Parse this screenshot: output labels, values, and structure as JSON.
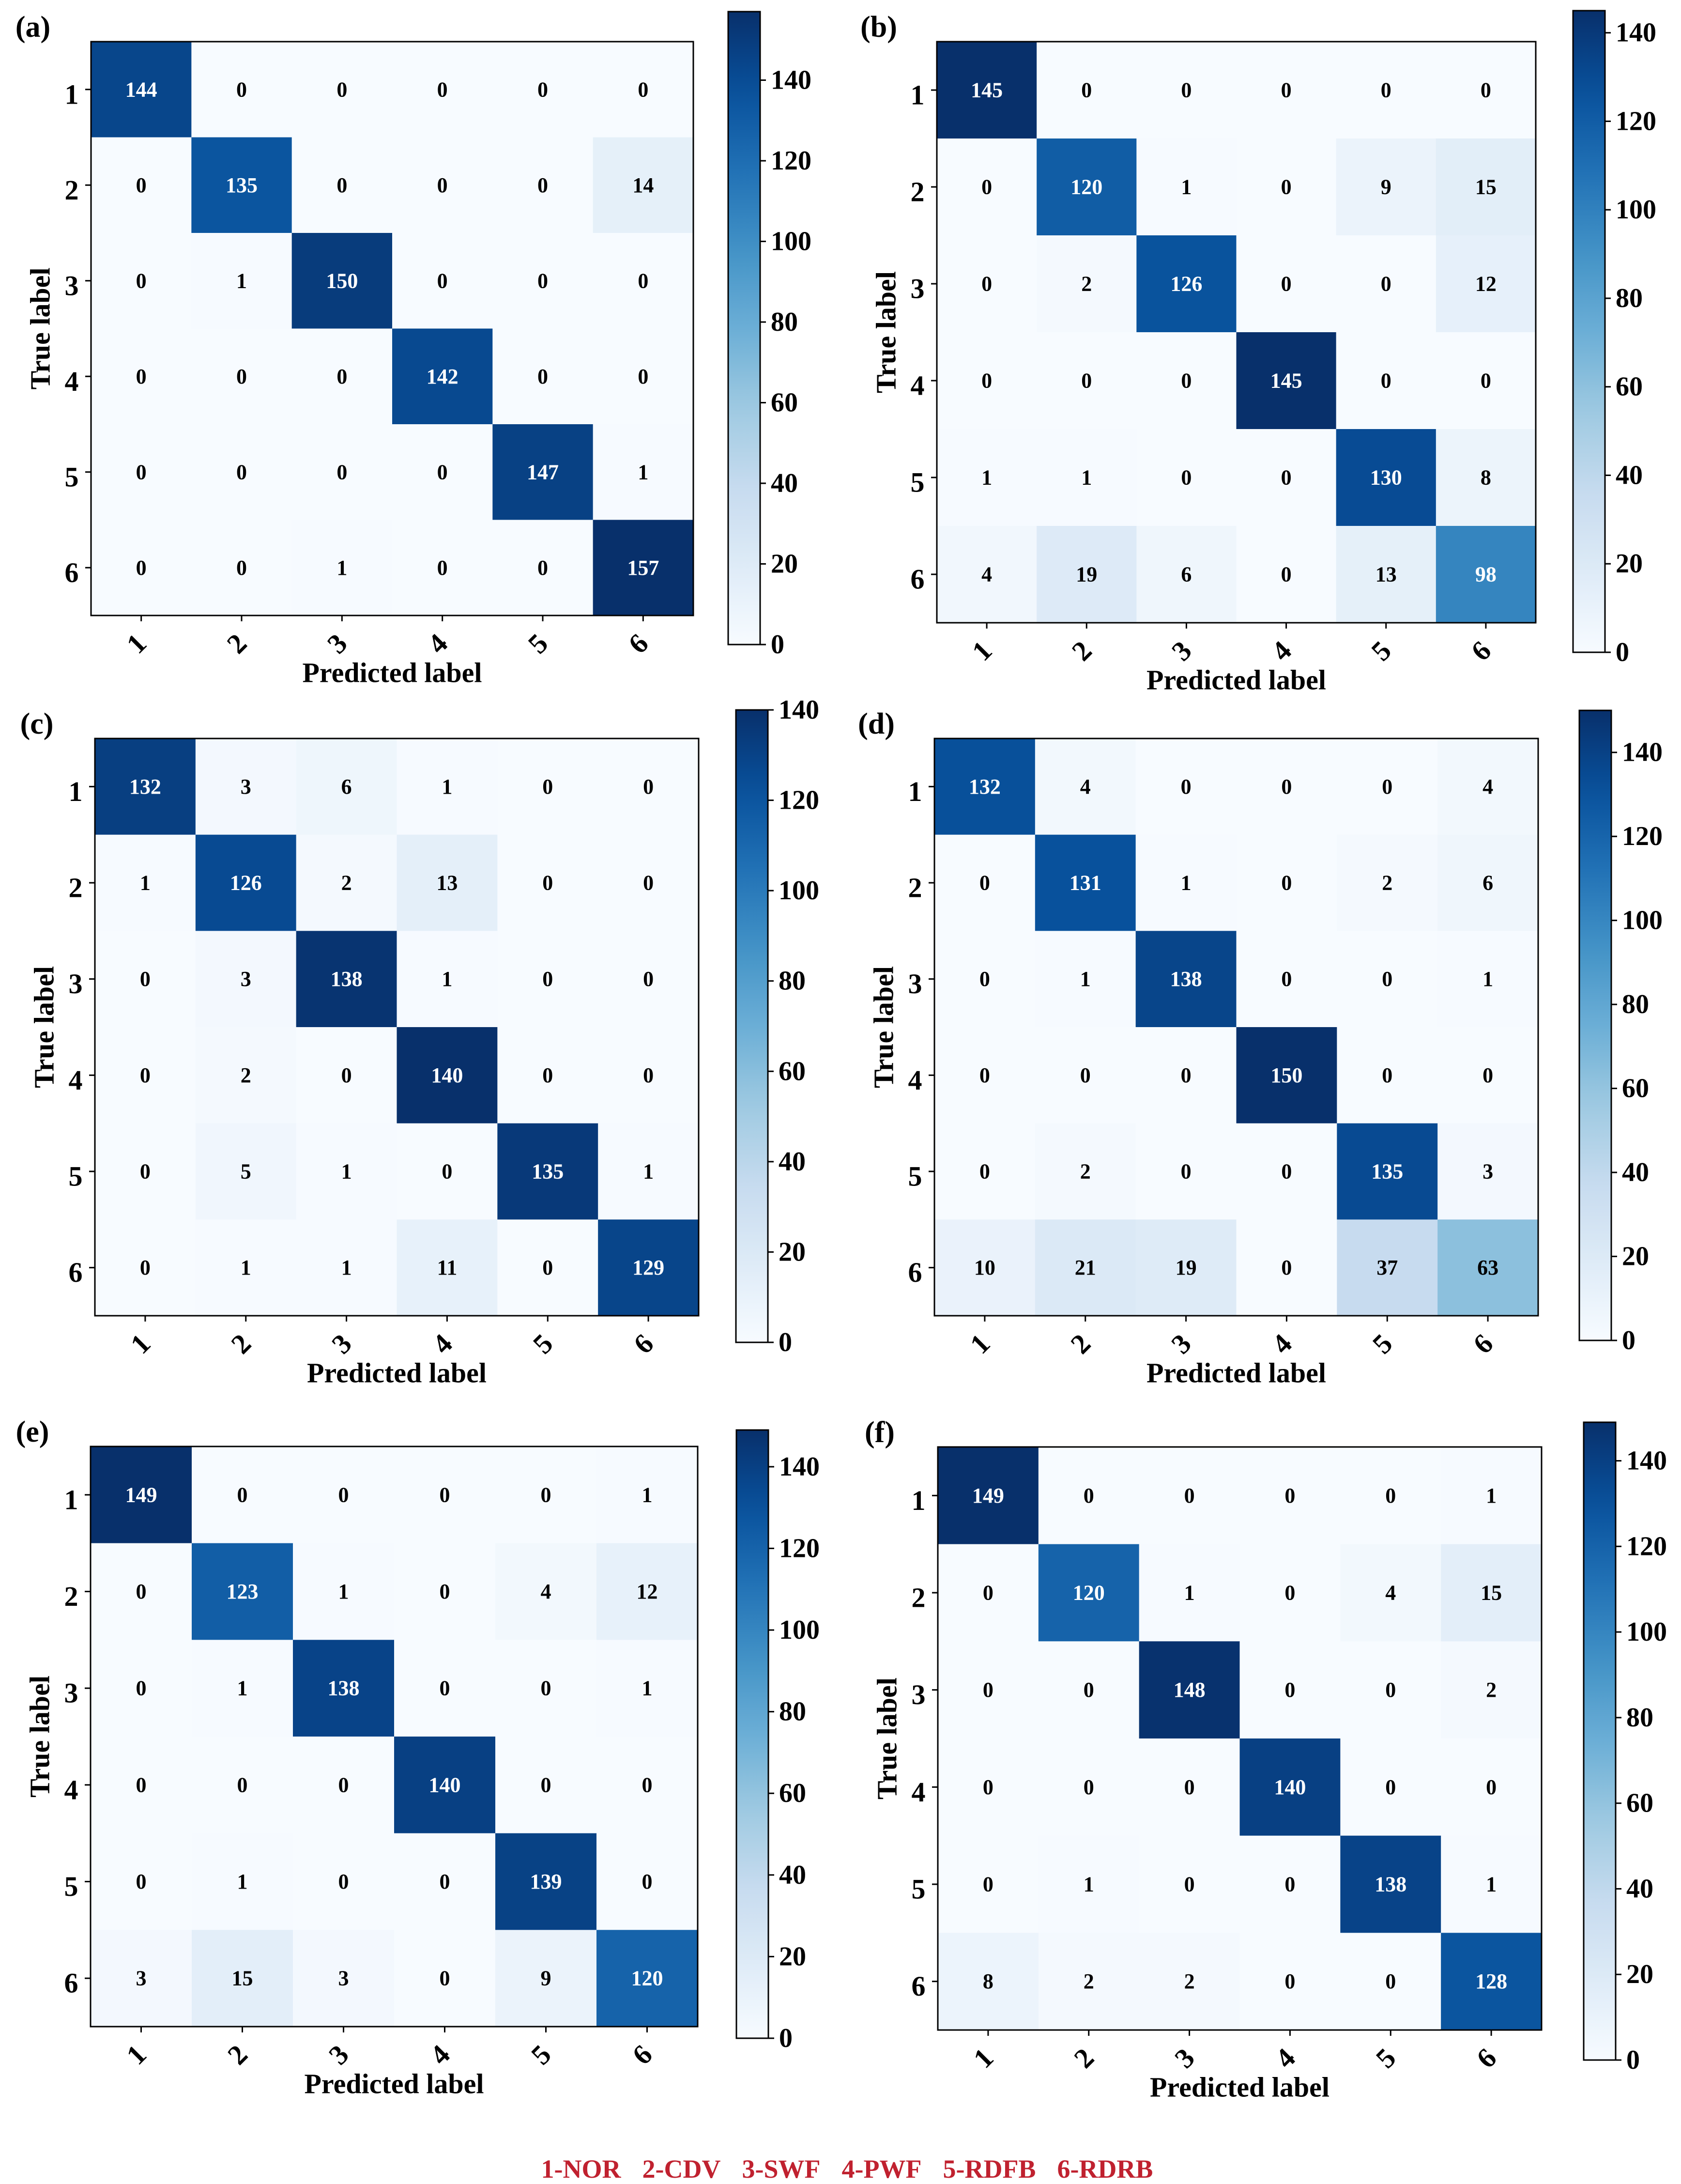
{
  "legend_items": [
    "1-NOR",
    "2-CDV",
    "3-SWF",
    "4-PWF",
    "5-RDFB",
    "6-RDRB"
  ],
  "colors": {
    "cmap_low": "#f7fbff",
    "cmap_high": "#08306b",
    "text_dark": "#000000",
    "text_light": "#ffffff",
    "legend": "#c0212f"
  },
  "chart_data": [
    {
      "type": "heatmap",
      "panel_label": "(a)",
      "xlabel": "Predicted label",
      "ylabel": "True label",
      "categories": [
        "1",
        "2",
        "3",
        "4",
        "5",
        "6"
      ],
      "colorbar_ticks": [
        "0",
        "20",
        "40",
        "60",
        "80",
        "100",
        "120",
        "140"
      ],
      "colorbar_range": [
        0,
        157
      ],
      "values": [
        [
          144,
          0,
          0,
          0,
          0,
          0
        ],
        [
          0,
          135,
          0,
          0,
          0,
          14
        ],
        [
          0,
          1,
          150,
          0,
          0,
          0
        ],
        [
          0,
          0,
          0,
          142,
          0,
          0
        ],
        [
          0,
          0,
          0,
          0,
          147,
          1
        ],
        [
          0,
          0,
          1,
          0,
          0,
          157
        ]
      ]
    },
    {
      "type": "heatmap",
      "panel_label": "(b)",
      "xlabel": "Predicted label",
      "ylabel": "True label",
      "categories": [
        "1",
        "2",
        "3",
        "4",
        "5",
        "6"
      ],
      "colorbar_ticks": [
        "0",
        "20",
        "40",
        "60",
        "80",
        "100",
        "120",
        "140"
      ],
      "colorbar_range": [
        0,
        145
      ],
      "values": [
        [
          145,
          0,
          0,
          0,
          0,
          0
        ],
        [
          0,
          120,
          1,
          0,
          9,
          15
        ],
        [
          0,
          2,
          126,
          0,
          0,
          12
        ],
        [
          0,
          0,
          0,
          145,
          0,
          0
        ],
        [
          1,
          1,
          0,
          0,
          130,
          8
        ],
        [
          4,
          19,
          6,
          0,
          13,
          98
        ]
      ]
    },
    {
      "type": "heatmap",
      "panel_label": "(c)",
      "xlabel": "Predicted label",
      "ylabel": "True label",
      "categories": [
        "1",
        "2",
        "3",
        "4",
        "5",
        "6"
      ],
      "colorbar_ticks": [
        "0",
        "20",
        "40",
        "60",
        "80",
        "100",
        "120",
        "140"
      ],
      "colorbar_range": [
        0,
        140
      ],
      "values": [
        [
          132,
          3,
          6,
          1,
          0,
          0
        ],
        [
          1,
          126,
          2,
          13,
          0,
          0
        ],
        [
          0,
          3,
          138,
          1,
          0,
          0
        ],
        [
          0,
          2,
          0,
          140,
          0,
          0
        ],
        [
          0,
          5,
          1,
          0,
          135,
          1
        ],
        [
          0,
          1,
          1,
          11,
          0,
          129
        ]
      ]
    },
    {
      "type": "heatmap",
      "panel_label": "(d)",
      "xlabel": "Predicted label",
      "ylabel": "True label",
      "categories": [
        "1",
        "2",
        "3",
        "4",
        "5",
        "6"
      ],
      "colorbar_ticks": [
        "0",
        "20",
        "40",
        "60",
        "80",
        "100",
        "120",
        "140"
      ],
      "colorbar_range": [
        0,
        150
      ],
      "values": [
        [
          132,
          4,
          0,
          0,
          0,
          4
        ],
        [
          0,
          131,
          1,
          0,
          2,
          6
        ],
        [
          0,
          1,
          138,
          0,
          0,
          1
        ],
        [
          0,
          0,
          0,
          150,
          0,
          0
        ],
        [
          0,
          2,
          0,
          0,
          135,
          3
        ],
        [
          10,
          21,
          19,
          0,
          37,
          63
        ]
      ]
    },
    {
      "type": "heatmap",
      "panel_label": "(e)",
      "xlabel": "Predicted label",
      "ylabel": "True label",
      "categories": [
        "1",
        "2",
        "3",
        "4",
        "5",
        "6"
      ],
      "colorbar_ticks": [
        "0",
        "20",
        "40",
        "60",
        "80",
        "100",
        "120",
        "140"
      ],
      "colorbar_range": [
        0,
        149
      ],
      "values": [
        [
          149,
          0,
          0,
          0,
          0,
          1
        ],
        [
          0,
          123,
          1,
          0,
          4,
          12
        ],
        [
          0,
          1,
          138,
          0,
          0,
          1
        ],
        [
          0,
          0,
          0,
          140,
          0,
          0
        ],
        [
          0,
          1,
          0,
          0,
          139,
          0
        ],
        [
          3,
          15,
          3,
          0,
          9,
          120
        ]
      ]
    },
    {
      "type": "heatmap",
      "panel_label": "(f)",
      "xlabel": "Predicted label",
      "ylabel": "True label",
      "categories": [
        "1",
        "2",
        "3",
        "4",
        "5",
        "6"
      ],
      "colorbar_ticks": [
        "0",
        "20",
        "40",
        "60",
        "80",
        "100",
        "120",
        "140"
      ],
      "colorbar_range": [
        0,
        149
      ],
      "values": [
        [
          149,
          0,
          0,
          0,
          0,
          1
        ],
        [
          0,
          120,
          1,
          0,
          4,
          15
        ],
        [
          0,
          0,
          148,
          0,
          0,
          2
        ],
        [
          0,
          0,
          0,
          140,
          0,
          0
        ],
        [
          0,
          1,
          0,
          0,
          138,
          1
        ],
        [
          8,
          2,
          2,
          0,
          0,
          128
        ]
      ]
    }
  ]
}
